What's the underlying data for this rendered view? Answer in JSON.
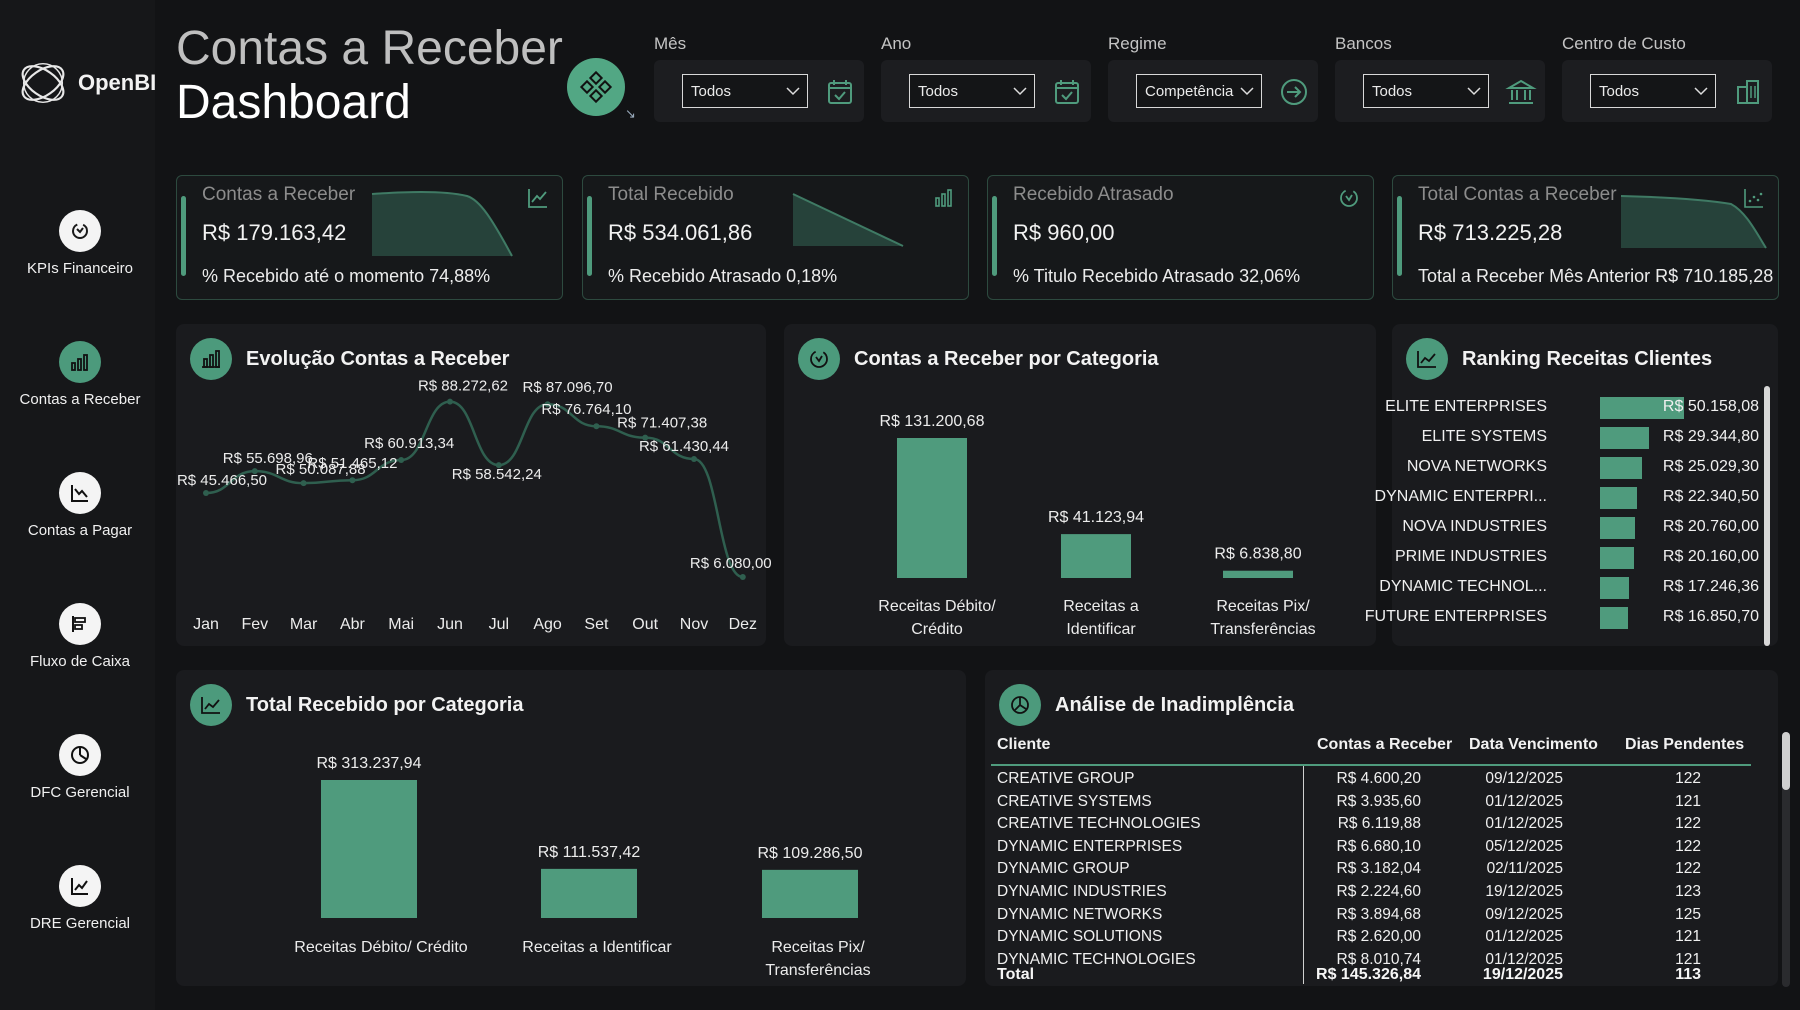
{
  "sidebar": {
    "logo_text": "OpenBI",
    "items": [
      {
        "label": "KPIs Financeiro",
        "icon": "recycle-icon"
      },
      {
        "label": "Contas a Receber",
        "icon": "bar-chart-icon"
      },
      {
        "label": "Contas a Pagar",
        "icon": "trend-down-icon"
      },
      {
        "label": "Fluxo de Caixa",
        "icon": "cash-flow-icon"
      },
      {
        "label": "DFC Gerencial",
        "icon": "pie-icon"
      },
      {
        "label": "DRE Gerencial",
        "icon": "trend-up-icon"
      }
    ]
  },
  "header": {
    "title_line1": "Contas a Receber",
    "title_line2": "Dashboard"
  },
  "filters": [
    {
      "label": "Mês",
      "value": "Todos",
      "icon": "calendar-icon"
    },
    {
      "label": "Ano",
      "value": "Todos",
      "icon": "calendar-icon"
    },
    {
      "label": "Regime",
      "value": "Competência",
      "icon": "arrow-circle-icon"
    },
    {
      "label": "Bancos",
      "value": "Todos",
      "icon": "bank-icon"
    },
    {
      "label": "Centro de Custo",
      "value": "Todos",
      "icon": "building-icon"
    }
  ],
  "kpis": [
    {
      "title": "Contas a Receber",
      "value": "R$ 179.163,42",
      "sub": "% Recebido até o momento 74,88%",
      "icon": "trend-chart-icon"
    },
    {
      "title": "Total Recebido",
      "value": "R$ 534.061,86",
      "sub": "% Recebido Atrasado 0,18%",
      "icon": "bar-chart-icon"
    },
    {
      "title": "Recebido Atrasado",
      "value": "R$ 960,00",
      "sub": "% Titulo Recebido Atrasado 32,06%",
      "icon": "recycle-icon"
    },
    {
      "title": "Total Contas a Receber",
      "value": "R$ 713.225,28",
      "sub": "Total a Receber Mês Anterior R$ 710.185,28",
      "icon": "scatter-icon"
    }
  ],
  "panels": {
    "evolucao_title": "Evolução Contas a Receber",
    "categoria_title": "Contas a Receber por Categoria",
    "ranking_title": "Ranking Receitas Clientes",
    "recebido_title": "Total Recebido por Categoria",
    "inadimplencia_title": "Análise de Inadimplência"
  },
  "chart_data": [
    {
      "type": "line",
      "title": "Evolução Contas a Receber",
      "categories": [
        "Jan",
        "Fev",
        "Mar",
        "Abr",
        "Mai",
        "Jun",
        "Jul",
        "Ago",
        "Set",
        "Out",
        "Nov",
        "Dez"
      ],
      "values": [
        45466.5,
        55698.96,
        50087.88,
        51465.12,
        60913.34,
        88272.62,
        58542.24,
        87096.7,
        76764.1,
        71407.38,
        61430.44,
        6080.0
      ],
      "labels": [
        "R$ 45.466,50",
        "R$ 55.698,96",
        "R$ 50.087,88",
        "R$ 51.465,12",
        "R$ 60.913,34",
        "R$ 88.272,62",
        "R$ 58.542,24",
        "R$ 87.096,70",
        "R$ 76.764,10",
        "R$ 71.407,38",
        "R$ 61.430,44",
        "R$ 6.080,00"
      ],
      "color": "#2f5f4f"
    },
    {
      "type": "bar",
      "title": "Contas a Receber por Categoria",
      "categories": [
        [
          "Receitas Débito/",
          "Crédito"
        ],
        [
          "Receitas a",
          "Identificar"
        ],
        [
          "Receitas Pix/",
          "Transferências"
        ]
      ],
      "values": [
        131200.68,
        41123.94,
        6838.8
      ],
      "labels": [
        "R$ 131.200,68",
        "R$ 41.123,94",
        "R$ 6.838,80"
      ],
      "color": "#4f9b7d"
    },
    {
      "type": "bar",
      "title": "Ranking Receitas Clientes",
      "orientation": "horizontal",
      "categories": [
        "ELITE ENTERPRISES",
        "ELITE SYSTEMS",
        "NOVA NETWORKS",
        "DYNAMIC ENTERPRI...",
        "NOVA INDUSTRIES",
        "PRIME INDUSTRIES",
        "DYNAMIC TECHNOL...",
        "FUTURE ENTERPRISES"
      ],
      "values": [
        50158.08,
        29344.8,
        25029.3,
        22340.5,
        20760.0,
        20160.0,
        17246.36,
        16850.7
      ],
      "labels": [
        "R$ 50.158,08",
        "R$ 29.344,80",
        "R$ 25.029,30",
        "R$ 22.340,50",
        "R$ 20.760,00",
        "R$ 20.160,00",
        "R$ 17.246,36",
        "R$ 16.850,70"
      ],
      "color": "#4f9b7d"
    },
    {
      "type": "bar",
      "title": "Total Recebido por Categoria",
      "categories": [
        [
          "Receitas Débito/ Crédito"
        ],
        [
          "Receitas a Identificar"
        ],
        [
          "Receitas Pix/",
          "Transferências"
        ]
      ],
      "values": [
        313237.94,
        111537.42,
        109286.5
      ],
      "labels": [
        "R$ 313.237,94",
        "R$ 111.537,42",
        "R$ 109.286,50"
      ],
      "color": "#4f9b7d"
    },
    {
      "type": "table",
      "title": "Análise de Inadimplência",
      "columns": [
        "Cliente",
        "Contas a Receber",
        "Data Vencimento",
        "Dias Pendentes"
      ],
      "rows": [
        [
          "CREATIVE GROUP",
          "R$ 4.600,20",
          "09/12/2025",
          "122"
        ],
        [
          "CREATIVE SYSTEMS",
          "R$ 3.935,60",
          "01/12/2025",
          "121"
        ],
        [
          "CREATIVE TECHNOLOGIES",
          "R$ 6.119,88",
          "01/12/2025",
          "122"
        ],
        [
          "DYNAMIC ENTERPRISES",
          "R$ 6.680,10",
          "05/12/2025",
          "122"
        ],
        [
          "DYNAMIC GROUP",
          "R$ 3.182,04",
          "02/11/2025",
          "122"
        ],
        [
          "DYNAMIC INDUSTRIES",
          "R$ 2.224,60",
          "19/12/2025",
          "123"
        ],
        [
          "DYNAMIC NETWORKS",
          "R$ 3.894,68",
          "09/12/2025",
          "125"
        ],
        [
          "DYNAMIC SOLUTIONS",
          "R$ 2.620,00",
          "01/12/2025",
          "121"
        ],
        [
          "DYNAMIC TECHNOLOGIES",
          "R$ 8.010,74",
          "01/12/2025",
          "121"
        ]
      ],
      "total": [
        "Total",
        "R$ 145.326,84",
        "19/12/2025",
        "113"
      ]
    }
  ]
}
